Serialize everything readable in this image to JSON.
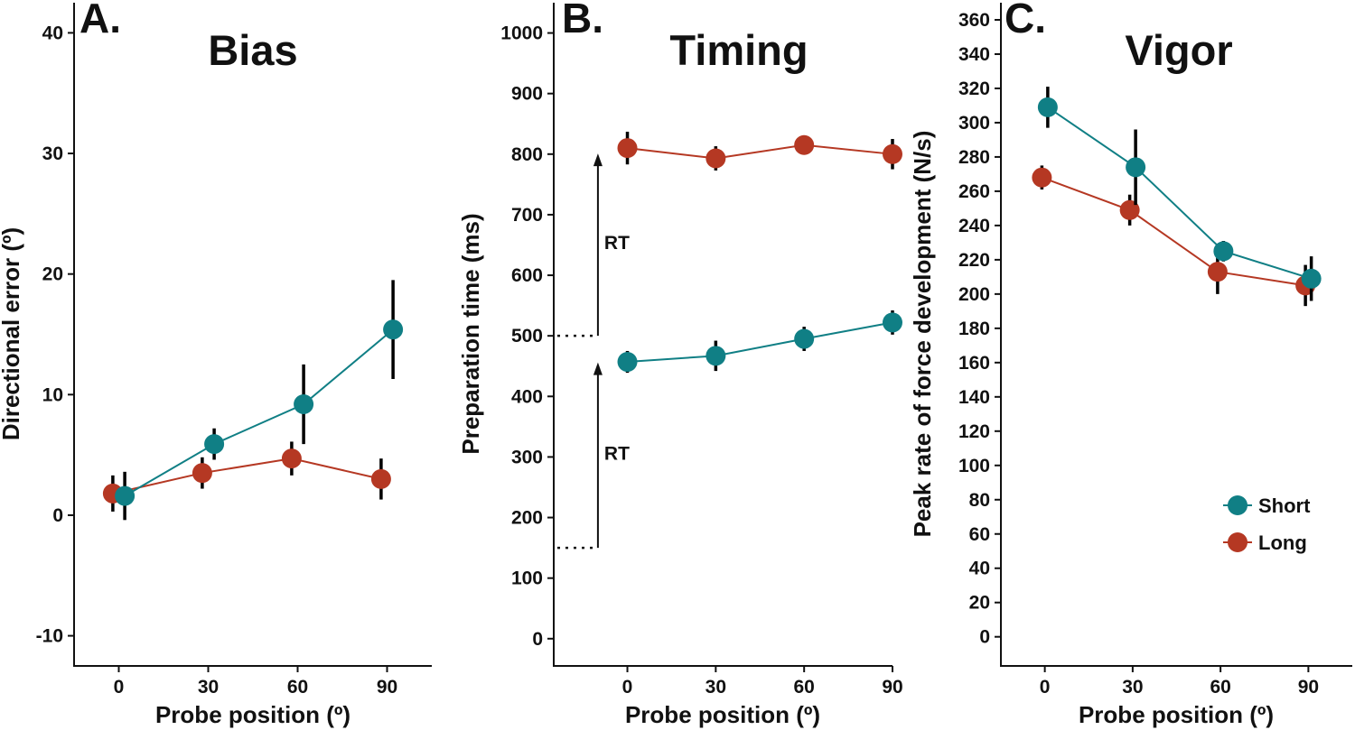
{
  "colors": {
    "short": "#107f85",
    "long": "#b53823",
    "axis": "#111111"
  },
  "legend": {
    "placement": "bottom-right",
    "entries": [
      "Short",
      "Long"
    ]
  },
  "chart_data": [
    {
      "type": "line",
      "panel_label": "A.",
      "title": "Bias",
      "xlabel": "Probe position (º)",
      "ylabel": "Directional error (º)",
      "xlim": [
        -15,
        105
      ],
      "ylim": [
        -12.5,
        42.5
      ],
      "x_ticks": [
        0,
        30,
        60,
        90
      ],
      "y_ticks": [
        -10,
        0,
        10,
        20,
        30,
        40
      ],
      "series": [
        {
          "name": "Long",
          "color_key": "long",
          "x": [
            -2,
            28,
            58,
            88
          ],
          "y": [
            1.8,
            3.5,
            4.7,
            3.0
          ],
          "err": [
            1.5,
            1.3,
            1.4,
            1.7
          ]
        },
        {
          "name": "Short",
          "color_key": "short",
          "x": [
            2,
            32,
            62,
            92
          ],
          "y": [
            1.6,
            5.9,
            9.2,
            15.4
          ],
          "err": [
            2.0,
            1.3,
            3.3,
            4.1
          ]
        }
      ]
    },
    {
      "type": "line",
      "panel_label": "B.",
      "title": "Timing",
      "xlabel": "Probe position (º)",
      "ylabel": "Preparation time (ms)",
      "xlim": [
        -25,
        90
      ],
      "ylim": [
        -45,
        1050
      ],
      "x_ticks": [
        0,
        30,
        60,
        90
      ],
      "y_ticks": [
        0,
        100,
        200,
        300,
        400,
        500,
        600,
        700,
        800,
        900,
        1000
      ],
      "series": [
        {
          "name": "Long",
          "color_key": "long",
          "x": [
            0,
            30,
            60,
            90
          ],
          "y": [
            810,
            793,
            815,
            800
          ],
          "err": [
            27,
            20,
            8,
            25
          ]
        },
        {
          "name": "Short",
          "color_key": "short",
          "x": [
            0,
            30,
            60,
            90
          ],
          "y": [
            457,
            467,
            495,
            522
          ],
          "err": [
            18,
            25,
            20,
            20
          ]
        }
      ],
      "annotations": [
        {
          "text": "RT",
          "from": 150,
          "to": 465,
          "dotted_level": 150
        },
        {
          "text": "RT",
          "from": 500,
          "to": 810,
          "dotted_level": 500
        }
      ]
    },
    {
      "type": "line",
      "panel_label": "C.",
      "title": "Vigor",
      "xlabel": "Probe position (º)",
      "ylabel": "Peak rate of force development (N/s)",
      "xlim": [
        -15,
        105
      ],
      "ylim": [
        -17,
        370
      ],
      "x_ticks": [
        0,
        30,
        60,
        90
      ],
      "y_ticks": [
        0,
        20,
        40,
        60,
        80,
        100,
        120,
        140,
        160,
        180,
        200,
        220,
        240,
        260,
        280,
        300,
        320,
        340,
        360
      ],
      "series": [
        {
          "name": "Long",
          "color_key": "long",
          "x": [
            -1,
            29,
            59,
            89
          ],
          "y": [
            268,
            249,
            213,
            205
          ],
          "err": [
            7,
            9,
            13,
            12
          ]
        },
        {
          "name": "Short",
          "color_key": "short",
          "x": [
            1,
            31,
            61,
            91
          ],
          "y": [
            309,
            274,
            225,
            209
          ],
          "err": [
            12,
            22,
            6,
            13
          ]
        }
      ]
    }
  ]
}
